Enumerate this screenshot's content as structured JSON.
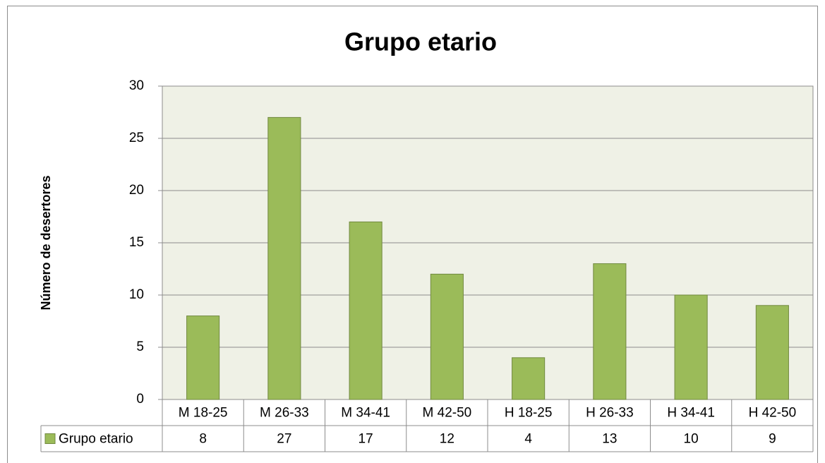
{
  "chart_data": {
    "type": "bar",
    "title": "Grupo etario",
    "y_label": "Número de desertores",
    "categories": [
      "M 18-25",
      "M 26-33",
      "M 34-41",
      "M 42-50",
      "H 18-25",
      "H 26-33",
      "H 34-41",
      "H 42-50"
    ],
    "series": [
      {
        "name": "Grupo etario",
        "color": "#9bbb59",
        "values": [
          8,
          27,
          17,
          12,
          4,
          13,
          10,
          9
        ]
      }
    ],
    "ylim": [
      0,
      30
    ],
    "yticks": [
      0,
      5,
      10,
      15,
      20,
      25,
      30
    ],
    "grid": true,
    "data_table": true
  }
}
